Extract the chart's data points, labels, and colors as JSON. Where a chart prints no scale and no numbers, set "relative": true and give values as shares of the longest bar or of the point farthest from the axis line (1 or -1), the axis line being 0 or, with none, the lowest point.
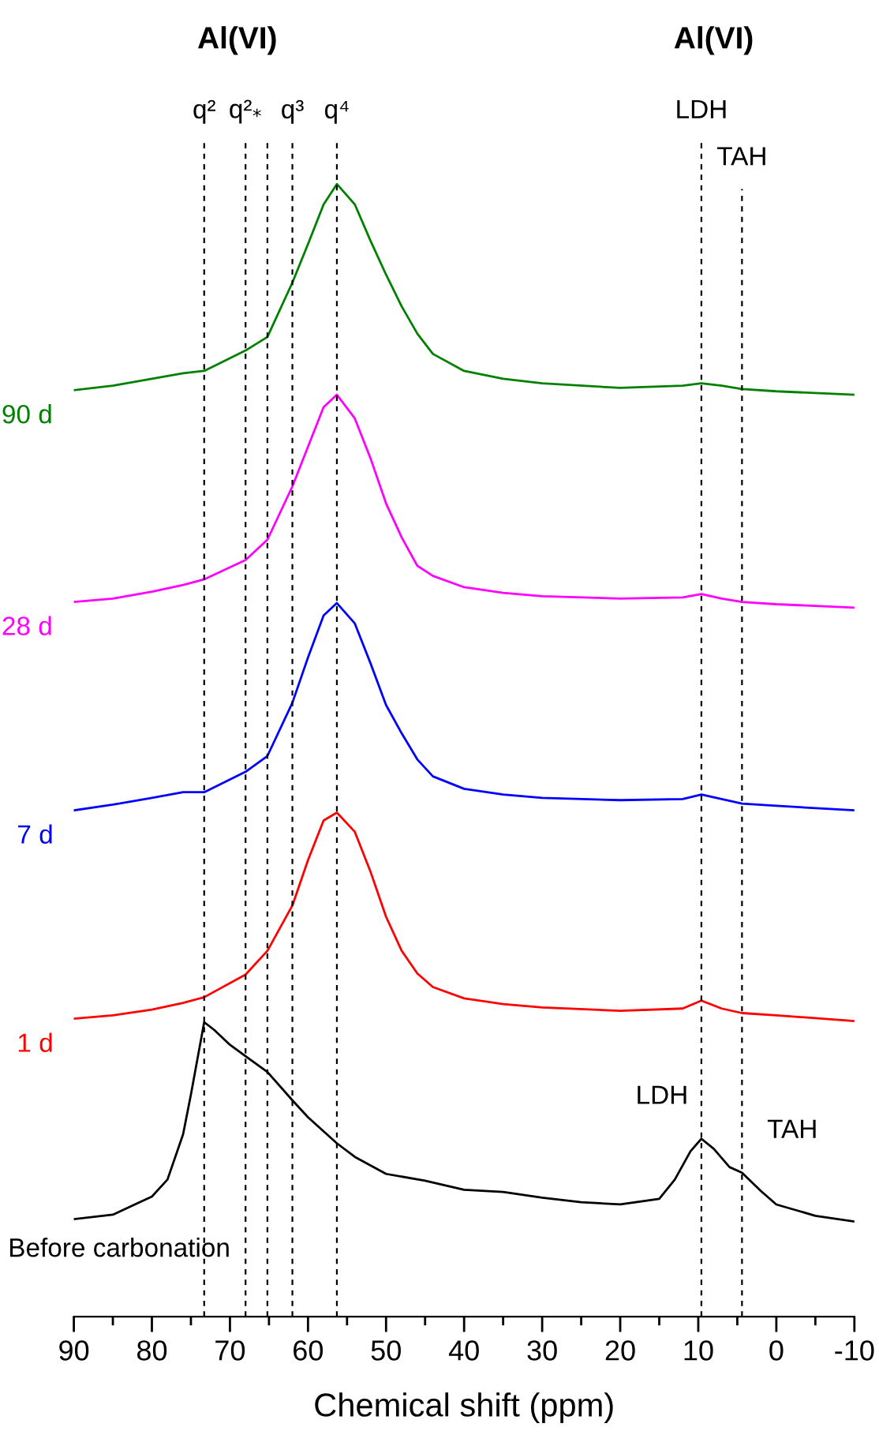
{
  "chart_data": {
    "type": "line",
    "relative": true,
    "xlabel": "Chemical shift (ppm)",
    "xlim": [
      90,
      -10
    ],
    "xticks": [
      90,
      80,
      70,
      60,
      50,
      40,
      30,
      20,
      10,
      0,
      -10
    ],
    "grid": false,
    "legend": false,
    "marker": "none",
    "line_style": "solid",
    "series": [
      {
        "name": "90 d",
        "color": "#008000",
        "x": [
          90,
          85,
          80,
          76,
          73.3,
          68,
          65.2,
          62,
          60,
          58,
          56.3,
          54,
          52,
          50,
          48,
          46,
          44,
          40,
          35,
          30,
          20,
          12,
          9.6,
          7,
          4.4,
          0,
          -10
        ],
        "values": [
          0.818,
          0.822,
          0.828,
          0.833,
          0.835,
          0.853,
          0.865,
          0.913,
          0.947,
          0.982,
          1.0,
          0.982,
          0.95,
          0.92,
          0.892,
          0.868,
          0.85,
          0.835,
          0.828,
          0.824,
          0.82,
          0.822,
          0.824,
          0.822,
          0.819,
          0.817,
          0.814
        ]
      },
      {
        "name": "28 d",
        "color": "#ff00ff",
        "x": [
          90,
          85,
          80,
          76,
          73.3,
          68,
          65.2,
          62,
          60,
          58,
          56.3,
          54,
          52,
          50,
          48,
          46,
          44,
          40,
          35,
          30,
          20,
          12,
          9.6,
          7,
          4.4,
          0,
          -10
        ],
        "values": [
          0.631,
          0.634,
          0.64,
          0.646,
          0.651,
          0.668,
          0.686,
          0.733,
          0.768,
          0.803,
          0.814,
          0.793,
          0.758,
          0.718,
          0.688,
          0.663,
          0.654,
          0.644,
          0.639,
          0.636,
          0.634,
          0.635,
          0.638,
          0.634,
          0.631,
          0.629,
          0.626
        ]
      },
      {
        "name": "7 d",
        "color": "#0000ff",
        "x": [
          90,
          85,
          80,
          76,
          73.3,
          68,
          65.2,
          62,
          60,
          58,
          56.3,
          54,
          52,
          50,
          48,
          46,
          44,
          40,
          35,
          30,
          20,
          12,
          9.6,
          7,
          4.4,
          0,
          -10
        ],
        "values": [
          0.447,
          0.452,
          0.458,
          0.463,
          0.463,
          0.481,
          0.495,
          0.542,
          0.582,
          0.619,
          0.63,
          0.612,
          0.577,
          0.54,
          0.515,
          0.492,
          0.477,
          0.466,
          0.461,
          0.458,
          0.456,
          0.457,
          0.461,
          0.457,
          0.453,
          0.451,
          0.447
        ]
      },
      {
        "name": "1 d",
        "color": "#ff0000",
        "x": [
          90,
          85,
          80,
          76,
          73.3,
          68,
          65.2,
          62,
          60,
          58,
          56.3,
          54,
          52,
          50,
          48,
          46,
          44,
          40,
          35,
          30,
          20,
          12,
          9.6,
          7,
          4.4,
          0,
          -10
        ],
        "values": [
          0.263,
          0.266,
          0.271,
          0.277,
          0.282,
          0.302,
          0.323,
          0.363,
          0.403,
          0.438,
          0.445,
          0.428,
          0.393,
          0.353,
          0.323,
          0.303,
          0.291,
          0.281,
          0.276,
          0.273,
          0.27,
          0.272,
          0.279,
          0.272,
          0.268,
          0.266,
          0.261
        ]
      },
      {
        "name": "Before carbonation",
        "color": "#000000",
        "x": [
          90,
          85,
          80,
          78,
          76,
          75,
          73.3,
          72,
          70,
          68,
          65.2,
          62,
          60,
          56.3,
          54,
          50,
          45,
          40,
          35,
          30,
          25,
          20,
          15,
          13,
          11,
          9.6,
          8,
          6,
          4.4,
          2,
          0,
          -5,
          -10
        ],
        "values": [
          0.086,
          0.09,
          0.106,
          0.121,
          0.161,
          0.196,
          0.26,
          0.253,
          0.24,
          0.23,
          0.216,
          0.191,
          0.176,
          0.153,
          0.141,
          0.126,
          0.12,
          0.112,
          0.11,
          0.105,
          0.101,
          0.099,
          0.104,
          0.121,
          0.146,
          0.157,
          0.148,
          0.132,
          0.127,
          0.111,
          0.099,
          0.089,
          0.084
        ]
      }
    ],
    "ref_lines": [
      {
        "axis": "x",
        "value": 73.3,
        "label": "q²",
        "color": "#000000",
        "line_style": "dashed"
      },
      {
        "axis": "x",
        "value": 68,
        "label": "q²$_{*}$",
        "color": "#000000",
        "line_style": "dashed"
      },
      {
        "axis": "x",
        "value": 65.2,
        "label": null,
        "color": "#000000",
        "line_style": "dashed"
      },
      {
        "axis": "x",
        "value": 62,
        "label": "q³",
        "color": "#000000",
        "line_style": "dashed"
      },
      {
        "axis": "x",
        "value": 56.3,
        "label": "q⁴",
        "color": "#000000",
        "line_style": "dashed"
      },
      {
        "axis": "x",
        "value": 9.6,
        "label": "LDH",
        "color": "#000000",
        "line_style": "dashed"
      },
      {
        "axis": "x",
        "value": 4.4,
        "label": "TAH",
        "color": "#000000",
        "line_style": "dashed"
      }
    ],
    "annotations": [
      "Al(VI)",
      "Al(VI)",
      {
        "text": "LDH",
        "x": 9.6,
        "y": 0.157
      },
      {
        "text": "TAH",
        "x": 4.4,
        "y": 0.127
      }
    ]
  }
}
